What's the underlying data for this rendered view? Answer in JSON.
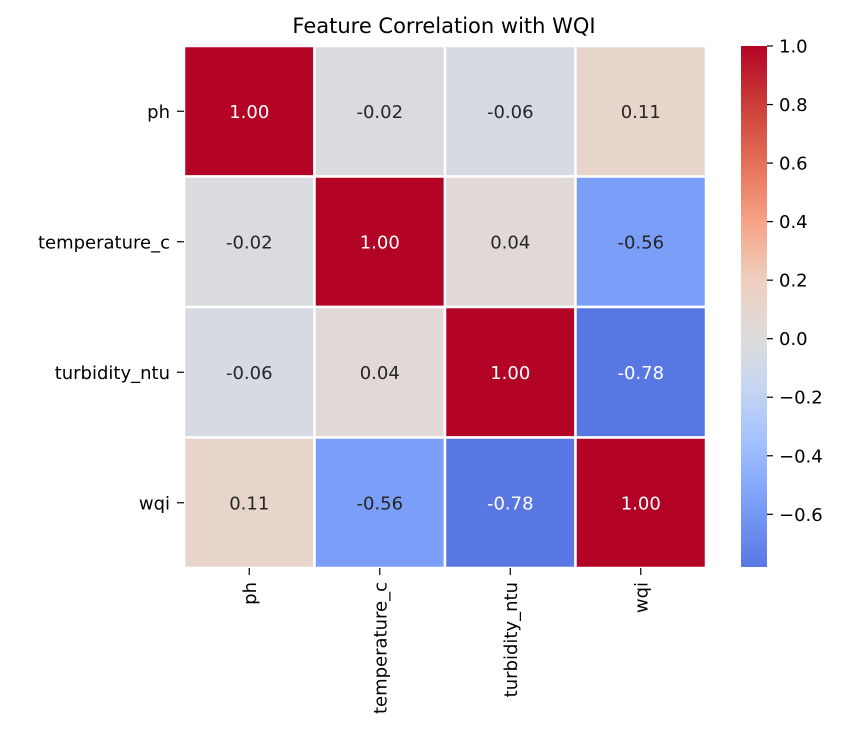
{
  "chart_data": {
    "type": "heatmap",
    "title": "Feature Correlation with WQI",
    "xlabel": "",
    "ylabel": "",
    "row_labels": [
      "ph",
      "temperature_c",
      "turbidity_ntu",
      "wqi"
    ],
    "col_labels": [
      "ph",
      "temperature_c",
      "turbidity_ntu",
      "wqi"
    ],
    "values": [
      [
        1.0,
        -0.02,
        -0.06,
        0.11
      ],
      [
        -0.02,
        1.0,
        0.04,
        -0.56
      ],
      [
        -0.06,
        0.04,
        1.0,
        -0.78
      ],
      [
        0.11,
        -0.56,
        -0.78,
        1.0
      ]
    ],
    "annotations": [
      [
        "1.00",
        "-0.02",
        "-0.06",
        "0.11"
      ],
      [
        "-0.02",
        "1.00",
        "0.04",
        "-0.56"
      ],
      [
        "-0.06",
        "0.04",
        "1.00",
        "-0.78"
      ],
      [
        "0.11",
        "-0.56",
        "-0.78",
        "1.00"
      ]
    ],
    "colormap": "coolwarm",
    "colorbar": {
      "vmin": -0.78,
      "vmax": 1.0,
      "ticks": [
        1.0,
        0.8,
        0.6,
        0.4,
        0.2,
        0.0,
        -0.2,
        -0.4,
        -0.6
      ],
      "tick_labels": [
        "1.0",
        "0.8",
        "0.6",
        "0.4",
        "0.2",
        "0.0",
        "−0.2",
        "−0.4",
        "−0.6"
      ],
      "placement": "right"
    },
    "grid": false,
    "cell_separator_color": "#ffffff"
  }
}
